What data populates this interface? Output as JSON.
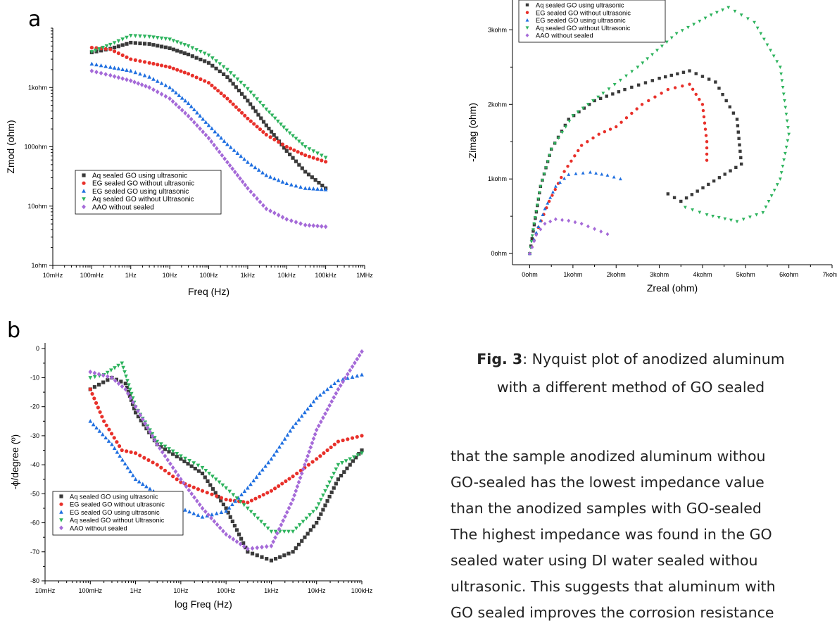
{
  "page": {
    "panel_a_letter": "a",
    "panel_b_letter": "b",
    "caption_bold": "Fig. 3",
    "caption_rest_1": ": Nyquist plot of anodized aluminum",
    "caption_line_2": "with a different method of GO sealed",
    "body_lines": [
      "that the sample anodized aluminum withou",
      "GO-sealed has the lowest impedance value",
      "than the anodized samples with GO-sealed",
      "The highest impedance was found in the GO",
      "sealed water using DI water sealed withou",
      "ultrasonic. This suggests that aluminum with",
      "GO sealed improves the corrosion resistance"
    ]
  },
  "chart_data": [
    {
      "id": "bode-zmod",
      "type": "scatter",
      "xlabel": "Freq (Hz)",
      "ylabel": "Zmod (ohm)",
      "x_scale": "log",
      "y_scale": "log",
      "xlim": [
        0.01,
        1000000
      ],
      "ylim": [
        1,
        10000
      ],
      "x_ticks": [
        "10mHz",
        "100mHz",
        "1Hz",
        "10Hz",
        "100Hz",
        "1kHz",
        "10kHz",
        "100kHz",
        "1MHz"
      ],
      "y_ticks": [
        "1ohm",
        "10ohm",
        "100ohm",
        "1kohm"
      ],
      "legend_position": "lower-left",
      "series": [
        {
          "name": "Aq sealed GO using ultrasonic",
          "color": "#3a3a3a",
          "marker": "square",
          "points": [
            [
              0.1,
              3900
            ],
            [
              0.3,
              4500
            ],
            [
              1,
              5700
            ],
            [
              3,
              5400
            ],
            [
              10,
              4600
            ],
            [
              30,
              3600
            ],
            [
              100,
              2600
            ],
            [
              300,
              1500
            ],
            [
              1000,
              600
            ],
            [
              3000,
              230
            ],
            [
              10000,
              85
            ],
            [
              30000,
              38
            ],
            [
              100000,
              20
            ]
          ]
        },
        {
          "name": "EG sealed GO without ultrasonic",
          "color": "#e8302a",
          "marker": "circle",
          "points": [
            [
              0.1,
              4700
            ],
            [
              0.3,
              4400
            ],
            [
              1,
              3000
            ],
            [
              3,
              2600
            ],
            [
              10,
              2200
            ],
            [
              30,
              1700
            ],
            [
              100,
              1200
            ],
            [
              300,
              650
            ],
            [
              1000,
              300
            ],
            [
              3000,
              160
            ],
            [
              10000,
              100
            ],
            [
              30000,
              72
            ],
            [
              100000,
              56
            ]
          ]
        },
        {
          "name": "EG sealed GO using ultrasonic",
          "color": "#1f6fe0",
          "marker": "triangle-up",
          "points": [
            [
              0.1,
              2500
            ],
            [
              0.3,
              2200
            ],
            [
              1,
              1900
            ],
            [
              3,
              1500
            ],
            [
              10,
              1000
            ],
            [
              30,
              540
            ],
            [
              100,
              230
            ],
            [
              300,
              110
            ],
            [
              1000,
              55
            ],
            [
              3000,
              33
            ],
            [
              10000,
              24
            ],
            [
              30000,
              20
            ],
            [
              100000,
              19
            ]
          ]
        },
        {
          "name": "Aq sealed GO without Ultrasonic",
          "color": "#2db35d",
          "marker": "triangle-down",
          "points": [
            [
              0.1,
              4000
            ],
            [
              0.3,
              5300
            ],
            [
              1,
              7500
            ],
            [
              3,
              7200
            ],
            [
              10,
              6500
            ],
            [
              30,
              5000
            ],
            [
              100,
              3500
            ],
            [
              300,
              2000
            ],
            [
              1000,
              950
            ],
            [
              3000,
              430
            ],
            [
              10000,
              190
            ],
            [
              30000,
              100
            ],
            [
              100000,
              66
            ]
          ]
        },
        {
          "name": "AAO without sealed",
          "color": "#a56ad8",
          "marker": "diamond",
          "points": [
            [
              0.1,
              1900
            ],
            [
              0.3,
              1600
            ],
            [
              1,
              1300
            ],
            [
              3,
              1000
            ],
            [
              10,
              650
            ],
            [
              30,
              330
            ],
            [
              100,
              140
            ],
            [
              300,
              55
            ],
            [
              1000,
              20
            ],
            [
              3000,
              9
            ],
            [
              10000,
              6
            ],
            [
              30000,
              4.8
            ],
            [
              100000,
              4.5
            ]
          ]
        }
      ]
    },
    {
      "id": "nyquist",
      "type": "scatter",
      "xlabel": "Zreal (ohm)",
      "ylabel": "-Zimag (ohm)",
      "xlim": [
        -400,
        7000
      ],
      "ylim": [
        -150,
        3400
      ],
      "x_ticks": [
        "0ohm",
        "1kohm",
        "2kohm",
        "3kohm",
        "4kohm",
        "5kohm",
        "6kohm",
        "7kohm"
      ],
      "y_ticks": [
        "0ohm",
        "1kohm",
        "2kohm",
        "3kohm"
      ],
      "legend_position": "top-left",
      "series": [
        {
          "name": "Aq sealed GO using ultrasonic",
          "color": "#3a3a3a",
          "marker": "square",
          "points": [
            [
              0,
              0
            ],
            [
              80,
              300
            ],
            [
              250,
              900
            ],
            [
              500,
              1400
            ],
            [
              900,
              1800
            ],
            [
              1500,
              2050
            ],
            [
              2200,
              2200
            ],
            [
              3000,
              2350
            ],
            [
              3700,
              2450
            ],
            [
              4300,
              2300
            ],
            [
              4800,
              1800
            ],
            [
              4900,
              1200
            ],
            [
              3500,
              700
            ],
            [
              3200,
              800
            ]
          ]
        },
        {
          "name": "EG sealed GO without ultrasonic",
          "color": "#e8302a",
          "marker": "circle",
          "points": [
            [
              0,
              0
            ],
            [
              200,
              350
            ],
            [
              450,
              700
            ],
            [
              800,
              1100
            ],
            [
              1200,
              1450
            ],
            [
              1600,
              1600
            ],
            [
              2000,
              1700
            ],
            [
              2600,
              2000
            ],
            [
              3200,
              2200
            ],
            [
              3700,
              2270
            ],
            [
              4000,
              2000
            ],
            [
              4100,
              1500
            ],
            [
              4100,
              1250
            ]
          ]
        },
        {
          "name": "EG sealed GO using ultrasonic",
          "color": "#1f6fe0",
          "marker": "triangle-up",
          "points": [
            [
              0,
              0
            ],
            [
              150,
              280
            ],
            [
              350,
              600
            ],
            [
              600,
              900
            ],
            [
              900,
              1060
            ],
            [
              1400,
              1090
            ],
            [
              1800,
              1050
            ],
            [
              2100,
              1000
            ]
          ]
        },
        {
          "name": "Aq sealed GO without Ultrasonic",
          "color": "#2db35d",
          "marker": "triangle-down",
          "points": [
            [
              0,
              0
            ],
            [
              100,
              400
            ],
            [
              250,
              900
            ],
            [
              500,
              1400
            ],
            [
              1000,
              1850
            ],
            [
              1700,
              2150
            ],
            [
              2500,
              2500
            ],
            [
              3400,
              2950
            ],
            [
              4200,
              3200
            ],
            [
              4600,
              3300
            ],
            [
              5200,
              3100
            ],
            [
              5800,
              2500
            ],
            [
              6000,
              1600
            ],
            [
              5800,
              1000
            ],
            [
              5400,
              550
            ],
            [
              4800,
              430
            ],
            [
              4100,
              520
            ],
            [
              3600,
              620
            ]
          ]
        },
        {
          "name": "AAO without sealed",
          "color": "#a56ad8",
          "marker": "diamond",
          "points": [
            [
              0,
              0
            ],
            [
              150,
              250
            ],
            [
              350,
              400
            ],
            [
              600,
              460
            ],
            [
              900,
              440
            ],
            [
              1200,
              400
            ],
            [
              1500,
              330
            ],
            [
              1800,
              260
            ]
          ]
        }
      ]
    },
    {
      "id": "bode-phase",
      "type": "scatter",
      "xlabel": "log Freq (Hz)",
      "ylabel": "-ϕ/degree (º)",
      "x_scale": "log",
      "xlim": [
        0.01,
        100000
      ],
      "ylim": [
        -80,
        2
      ],
      "x_ticks": [
        "10mHz",
        "100mHz",
        "1Hz",
        "10Hz",
        "100Hz",
        "1kHz",
        "10kHz",
        "100kHz"
      ],
      "y_ticks": [
        "0",
        "-10",
        "-20",
        "-30",
        "-40",
        "-50",
        "-60",
        "-70",
        "-80"
      ],
      "legend_position": "lower-left",
      "series": [
        {
          "name": "Aq sealed GO using ultrasonic",
          "color": "#3a3a3a",
          "marker": "square",
          "points": [
            [
              0.1,
              -14
            ],
            [
              0.3,
              -10
            ],
            [
              0.6,
              -12
            ],
            [
              1,
              -22
            ],
            [
              3,
              -33
            ],
            [
              10,
              -38
            ],
            [
              30,
              -43
            ],
            [
              100,
              -55
            ],
            [
              300,
              -70
            ],
            [
              1000,
              -73
            ],
            [
              3000,
              -70
            ],
            [
              10000,
              -60
            ],
            [
              30000,
              -45
            ],
            [
              100000,
              -35
            ]
          ]
        },
        {
          "name": "EG sealed GO without ultrasonic",
          "color": "#e8302a",
          "marker": "circle",
          "points": [
            [
              0.1,
              -14
            ],
            [
              0.2,
              -25
            ],
            [
              0.5,
              -35
            ],
            [
              1,
              -36
            ],
            [
              3,
              -40
            ],
            [
              10,
              -46
            ],
            [
              30,
              -49
            ],
            [
              100,
              -52
            ],
            [
              300,
              -53
            ],
            [
              1000,
              -49
            ],
            [
              3000,
              -44
            ],
            [
              10000,
              -38
            ],
            [
              30000,
              -32
            ],
            [
              100000,
              -30
            ]
          ]
        },
        {
          "name": "EG sealed GO using ultrasonic",
          "color": "#1f6fe0",
          "marker": "triangle-up",
          "points": [
            [
              0.1,
              -25
            ],
            [
              0.3,
              -33
            ],
            [
              1,
              -45
            ],
            [
              3,
              -50
            ],
            [
              10,
              -55
            ],
            [
              30,
              -58
            ],
            [
              100,
              -56
            ],
            [
              300,
              -48
            ],
            [
              1000,
              -38
            ],
            [
              3000,
              -27
            ],
            [
              10000,
              -17
            ],
            [
              30000,
              -11
            ],
            [
              100000,
              -9
            ]
          ]
        },
        {
          "name": "Aq sealed GO without Ultrasonic",
          "color": "#2db35d",
          "marker": "triangle-down",
          "points": [
            [
              0.1,
              -10
            ],
            [
              0.2,
              -9
            ],
            [
              0.5,
              -5
            ],
            [
              1,
              -20
            ],
            [
              3,
              -32
            ],
            [
              10,
              -37
            ],
            [
              30,
              -41
            ],
            [
              100,
              -48
            ],
            [
              300,
              -55
            ],
            [
              1000,
              -63
            ],
            [
              3000,
              -63
            ],
            [
              10000,
              -55
            ],
            [
              30000,
              -40
            ],
            [
              100000,
              -36
            ]
          ]
        },
        {
          "name": "AAO without sealed",
          "color": "#a56ad8",
          "marker": "diamond",
          "points": [
            [
              0.1,
              -8
            ],
            [
              0.3,
              -10
            ],
            [
              0.6,
              -14
            ],
            [
              1,
              -20
            ],
            [
              3,
              -33
            ],
            [
              10,
              -45
            ],
            [
              30,
              -55
            ],
            [
              100,
              -64
            ],
            [
              300,
              -69
            ],
            [
              1000,
              -68
            ],
            [
              3000,
              -52
            ],
            [
              10000,
              -28
            ],
            [
              30000,
              -14
            ],
            [
              100000,
              -1
            ]
          ]
        }
      ]
    }
  ]
}
